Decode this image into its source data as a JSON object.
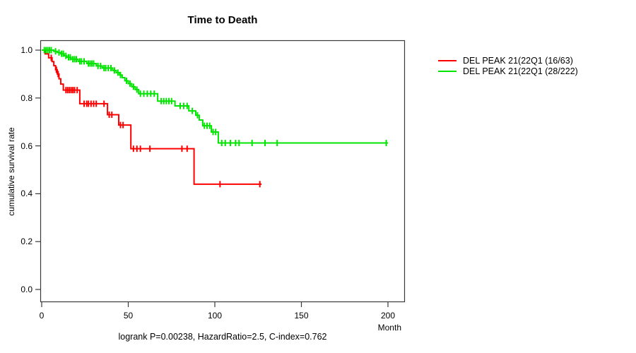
{
  "title": "Time to Death",
  "caption": "logrank P=0.00238, HazardRatio=2.5, C-index=0.762",
  "colors": {
    "axis": "#3a3a3a",
    "text": "#000000",
    "background": "#ffffff",
    "series_red": "#ff0000",
    "series_green": "#00e400"
  },
  "chart_data": {
    "type": "line",
    "subtype": "kaplan-meier-step",
    "title": "Time to Death",
    "xlabel": "Month",
    "ylabel": "cumulative survival rate",
    "xlim": [
      0,
      200
    ],
    "ylim": [
      0.0,
      1.0
    ],
    "xticks": [
      "0",
      "50",
      "100",
      "150",
      "200"
    ],
    "yticks": [
      "1.0",
      "0.8",
      "0.6",
      "0.4",
      "0.2",
      "0.0"
    ],
    "grid": false,
    "legend_position": "right",
    "series": [
      {
        "name": "DEL PEAK 21(22Q1 (16/63)",
        "color": "#ff0000",
        "events_total": "16/63",
        "steps": [
          [
            0,
            1.0
          ],
          [
            2,
            0.984
          ],
          [
            4,
            0.968
          ],
          [
            6,
            0.952
          ],
          [
            7,
            0.935
          ],
          [
            8,
            0.918
          ],
          [
            9,
            0.9
          ],
          [
            10,
            0.88
          ],
          [
            11,
            0.858
          ],
          [
            12.5,
            0.833
          ],
          [
            22,
            0.776
          ],
          [
            38,
            0.73
          ],
          [
            44.5,
            0.687
          ],
          [
            51.5,
            0.588
          ],
          [
            88,
            0.44
          ]
        ],
        "end": 127,
        "censor_ticks": [
          5.5,
          8.5,
          9.5,
          14,
          15,
          16,
          17,
          18,
          19,
          20.5,
          24.5,
          26,
          27,
          28.5,
          30,
          31.5,
          36,
          39,
          40.5,
          45.5,
          47,
          53,
          55,
          57,
          62.5,
          81,
          84,
          103,
          126
        ]
      },
      {
        "name": "DEL PEAK 21(22Q1 (28/222)",
        "color": "#00e400",
        "events_total": "28/222",
        "steps": [
          [
            0,
            1.0
          ],
          [
            7,
            0.995
          ],
          [
            9,
            0.99
          ],
          [
            11,
            0.985
          ],
          [
            13,
            0.976
          ],
          [
            14.5,
            0.97
          ],
          [
            17,
            0.962
          ],
          [
            21,
            0.953
          ],
          [
            26,
            0.944
          ],
          [
            31.5,
            0.934
          ],
          [
            35,
            0.925
          ],
          [
            41,
            0.915
          ],
          [
            43,
            0.906
          ],
          [
            45,
            0.896
          ],
          [
            46.5,
            0.885
          ],
          [
            48,
            0.872
          ],
          [
            50,
            0.86
          ],
          [
            52,
            0.847
          ],
          [
            54,
            0.835
          ],
          [
            56,
            0.818
          ],
          [
            67,
            0.787
          ],
          [
            77,
            0.767
          ],
          [
            85,
            0.746
          ],
          [
            89,
            0.728
          ],
          [
            91,
            0.708
          ],
          [
            93,
            0.684
          ],
          [
            98,
            0.658
          ],
          [
            102,
            0.612
          ]
        ],
        "end": 200,
        "censor_ticks": [
          1.5,
          2.5,
          3.5,
          4.5,
          5.5,
          8,
          10,
          11.5,
          12.5,
          14,
          15.5,
          16.5,
          18,
          19,
          20,
          22,
          23,
          24.5,
          27,
          28,
          29,
          30,
          32.5,
          34,
          36,
          37,
          38.5,
          40,
          42,
          44,
          45.5,
          49,
          51,
          53,
          55,
          57,
          59,
          61,
          63,
          65,
          69,
          70.5,
          72,
          73.5,
          75,
          80,
          82,
          84,
          87,
          90,
          94,
          95.5,
          97,
          99,
          100.5,
          104,
          106,
          109,
          112,
          114,
          121.5,
          129,
          136,
          199
        ]
      }
    ]
  }
}
